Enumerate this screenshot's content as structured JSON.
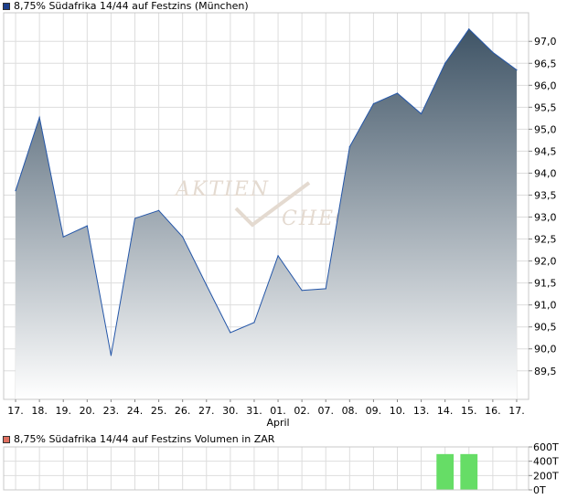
{
  "main_title": "8,75% Südafrika 14/44 auf Festzins (München)",
  "volume_title": "8,75% Südafrika 14/44 auf Festzins Volumen in ZAR",
  "watermark": {
    "line1": "AKTIEN",
    "line2": "CHECK"
  },
  "colors": {
    "price_swatch": "#1c3f8c",
    "volume_swatch": "#e07060",
    "price_line": "#2456a8",
    "area_top": "#3f5466",
    "area_bottom": "#ffffff",
    "volume_bar": "#66dd66",
    "grid": "#dddddd"
  },
  "chart_data": [
    {
      "type": "area",
      "title": "8,75% Südafrika 14/44 auf Festzins (München)",
      "ylim": [
        88.85,
        97.65
      ],
      "yticks": [
        89.5,
        90.0,
        90.5,
        91.0,
        91.5,
        92.0,
        92.5,
        93.0,
        93.5,
        94.0,
        94.5,
        95.0,
        95.5,
        96.0,
        96.5,
        97.0
      ],
      "ytick_labels": [
        "89,5",
        "90,0",
        "90,5",
        "91,0",
        "91,5",
        "92,0",
        "92,5",
        "93,0",
        "93,5",
        "94,0",
        "94,5",
        "95,0",
        "95,5",
        "96,0",
        "96,5",
        "97,0"
      ],
      "x": [
        "17.",
        "18.",
        "19.",
        "20.",
        "23.",
        "24.",
        "25.",
        "26.",
        "27.",
        "30.",
        "31.",
        "01.",
        "02.",
        "07.",
        "08.",
        "09.",
        "10.",
        "13.",
        "14.",
        "15.",
        "16.",
        "17."
      ],
      "month_label": {
        "index": 11,
        "text": "April"
      },
      "values": [
        93.6,
        95.27,
        92.55,
        92.8,
        89.85,
        92.97,
        93.15,
        92.55,
        91.45,
        90.37,
        90.6,
        92.12,
        91.33,
        91.37,
        94.6,
        95.58,
        95.82,
        95.35,
        96.5,
        97.28,
        96.75,
        96.35
      ],
      "grid": true
    },
    {
      "type": "bar",
      "title": "8,75% Südafrika 14/44 auf Festzins Volumen in ZAR",
      "ylim": [
        0,
        600
      ],
      "yticks": [
        0,
        200,
        400,
        600
      ],
      "ytick_labels": [
        "0T",
        "200T",
        "400T",
        "600T"
      ],
      "x": [
        "17.",
        "18.",
        "19.",
        "20.",
        "23.",
        "24.",
        "25.",
        "26.",
        "27.",
        "30.",
        "31.",
        "01.",
        "02.",
        "07.",
        "08.",
        "09.",
        "10.",
        "13.",
        "14.",
        "15.",
        "16.",
        "17."
      ],
      "values": [
        0,
        0,
        0,
        0,
        0,
        0,
        0,
        0,
        0,
        0,
        0,
        0,
        0,
        0,
        0,
        0,
        0,
        0,
        500,
        500,
        0,
        0
      ],
      "grid": true
    }
  ]
}
